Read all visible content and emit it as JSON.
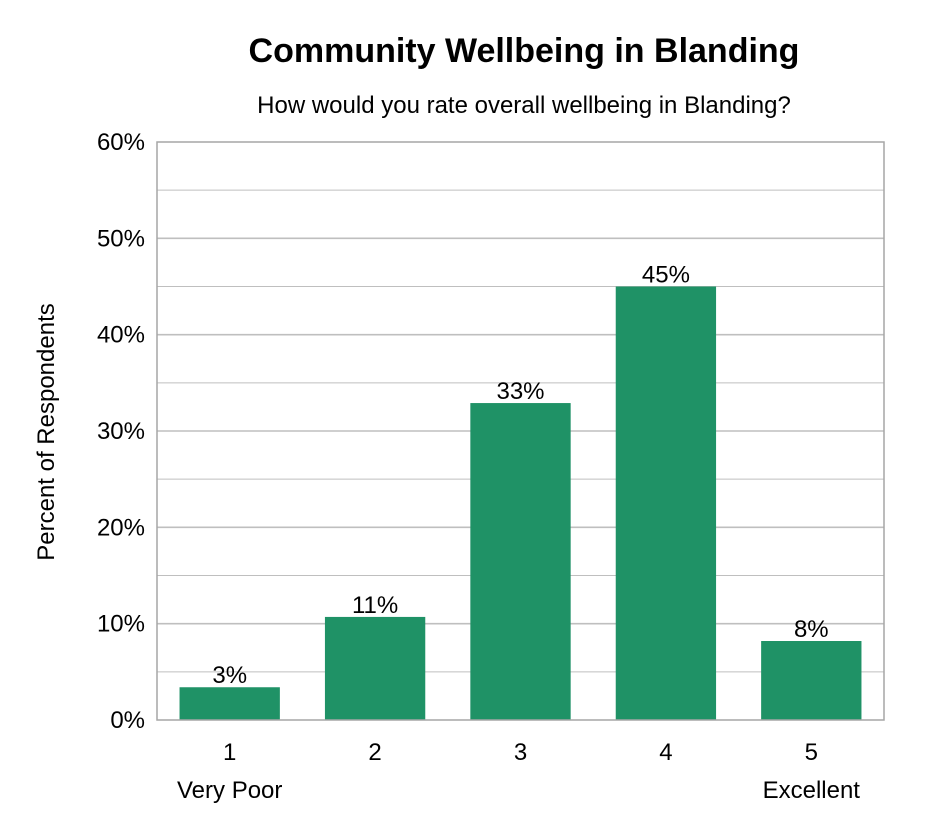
{
  "colors": {
    "bar": "#1F9266",
    "grid": "#bfbfbf",
    "frame": "#a6a6a6"
  },
  "chart_data": {
    "type": "bar",
    "title": "Community Wellbeing in Blanding",
    "subtitle": "How would you rate overall wellbeing in Blanding?",
    "ylabel": "Percent of Respondents",
    "xlabel": "",
    "ylim": [
      0,
      60
    ],
    "y_ticks": [
      "0%",
      "10%",
      "20%",
      "30%",
      "40%",
      "50%",
      "60%"
    ],
    "categories": [
      "1",
      "2",
      "3",
      "4",
      "5"
    ],
    "category_sublabels": [
      "Very Poor",
      "",
      "",
      "",
      "Excellent"
    ],
    "values": [
      3.4,
      10.7,
      32.9,
      45.0,
      8.2
    ],
    "data_labels": [
      "3%",
      "11%",
      "33%",
      "45%",
      "8%"
    ],
    "grid": true,
    "legend": "none"
  }
}
